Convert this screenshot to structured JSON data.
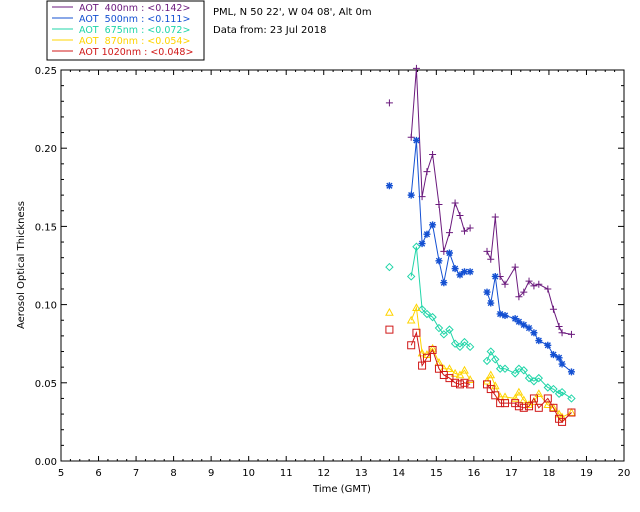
{
  "chart_data": {
    "type": "line",
    "xlabel": "Time (GMT)",
    "ylabel": "Aerosol Optical Thickness",
    "xlim": [
      5,
      20
    ],
    "ylim": [
      0,
      0.25
    ],
    "x_ticks": [
      "5",
      "6",
      "7",
      "8",
      "9",
      "10",
      "11",
      "12",
      "13",
      "14",
      "15",
      "16",
      "17",
      "18",
      "19",
      "20"
    ],
    "y_ticks": [
      "0.00",
      "0.05",
      "0.10",
      "0.15",
      "0.20",
      "0.25"
    ],
    "info": {
      "location": "PML, N 50 22', W 04 08', Alt 0m",
      "date": "Data from: 23 Jul 2018"
    },
    "series": [
      {
        "name": "AOT  400nm : <0.142>",
        "color": "#6b1a7d",
        "marker": "plus",
        "x": [
          13.75,
          14.33,
          14.47,
          14.62,
          14.75,
          14.9,
          15.07,
          15.2,
          15.35,
          15.5,
          15.63,
          15.75,
          15.9,
          16.35,
          16.45,
          16.57,
          16.7,
          16.83,
          17.1,
          17.2,
          17.33,
          17.47,
          17.6,
          17.73,
          17.97,
          18.12,
          18.27,
          18.35,
          18.6
        ],
        "y": [
          0.229,
          0.207,
          0.251,
          0.169,
          0.185,
          0.196,
          0.164,
          0.134,
          0.146,
          0.165,
          0.157,
          0.147,
          0.149,
          0.134,
          0.129,
          0.156,
          0.118,
          0.113,
          0.124,
          0.105,
          0.108,
          0.115,
          0.112,
          0.113,
          0.11,
          0.097,
          0.086,
          0.082,
          0.081
        ]
      },
      {
        "name": "AOT  500nm : <0.111>",
        "color": "#1450d2",
        "marker": "asterisk",
        "x": [
          13.75,
          14.33,
          14.47,
          14.62,
          14.75,
          14.9,
          15.07,
          15.2,
          15.35,
          15.5,
          15.63,
          15.75,
          15.9,
          16.35,
          16.45,
          16.57,
          16.7,
          16.83,
          17.1,
          17.2,
          17.33,
          17.47,
          17.6,
          17.73,
          17.97,
          18.12,
          18.27,
          18.35,
          18.6
        ],
        "y": [
          0.176,
          0.17,
          0.205,
          0.139,
          0.145,
          0.151,
          0.128,
          0.114,
          0.133,
          0.123,
          0.119,
          0.121,
          0.121,
          0.108,
          0.101,
          0.118,
          0.094,
          0.093,
          0.091,
          0.089,
          0.087,
          0.085,
          0.082,
          0.077,
          0.074,
          0.068,
          0.066,
          0.062,
          0.057
        ]
      },
      {
        "name": "AOT  675nm : <0.072>",
        "color": "#20d5a8",
        "marker": "diamond",
        "x": [
          13.75,
          14.33,
          14.47,
          14.62,
          14.75,
          14.9,
          15.07,
          15.2,
          15.35,
          15.5,
          15.63,
          15.75,
          15.9,
          16.35,
          16.45,
          16.57,
          16.7,
          16.83,
          17.1,
          17.2,
          17.33,
          17.47,
          17.6,
          17.73,
          17.97,
          18.12,
          18.27,
          18.35,
          18.6
        ],
        "y": [
          0.124,
          0.118,
          0.137,
          0.097,
          0.094,
          0.092,
          0.085,
          0.081,
          0.084,
          0.075,
          0.073,
          0.076,
          0.073,
          0.064,
          0.07,
          0.065,
          0.059,
          0.059,
          0.056,
          0.059,
          0.058,
          0.053,
          0.051,
          0.053,
          0.047,
          0.046,
          0.043,
          0.044,
          0.04
        ]
      },
      {
        "name": "AOT  870nm : <0.054>",
        "color": "#ffd400",
        "marker": "triangle",
        "x": [
          13.75,
          14.33,
          14.47,
          14.62,
          14.75,
          14.9,
          15.07,
          15.2,
          15.35,
          15.5,
          15.63,
          15.75,
          15.9,
          16.35,
          16.45,
          16.57,
          16.7,
          16.83,
          17.1,
          17.2,
          17.33,
          17.47,
          17.6,
          17.73,
          17.97,
          18.12,
          18.27,
          18.35,
          18.6
        ],
        "y": [
          0.095,
          0.09,
          0.098,
          0.069,
          0.068,
          0.072,
          0.063,
          0.059,
          0.059,
          0.056,
          0.055,
          0.058,
          0.052,
          0.051,
          0.055,
          0.048,
          0.041,
          0.041,
          0.04,
          0.044,
          0.039,
          0.036,
          0.038,
          0.043,
          0.036,
          0.034,
          0.03,
          0.028,
          0.031
        ]
      },
      {
        "name": "AOT 1020nm : <0.048>",
        "color": "#d01818",
        "marker": "square",
        "x": [
          13.75,
          14.33,
          14.47,
          14.62,
          14.75,
          14.9,
          15.07,
          15.2,
          15.35,
          15.5,
          15.63,
          15.75,
          15.9,
          16.35,
          16.45,
          16.57,
          16.7,
          16.83,
          17.1,
          17.2,
          17.33,
          17.47,
          17.6,
          17.73,
          17.97,
          18.12,
          18.27,
          18.35,
          18.6
        ],
        "y": [
          0.084,
          0.074,
          0.082,
          0.061,
          0.066,
          0.071,
          0.059,
          0.055,
          0.053,
          0.05,
          0.049,
          0.05,
          0.049,
          0.049,
          0.046,
          0.042,
          0.037,
          0.037,
          0.037,
          0.035,
          0.034,
          0.035,
          0.04,
          0.034,
          0.04,
          0.034,
          0.027,
          0.025,
          0.031
        ]
      }
    ]
  }
}
